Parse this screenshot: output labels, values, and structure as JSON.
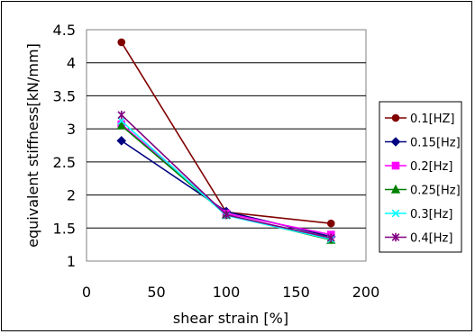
{
  "chart_data": {
    "type": "line",
    "title": "",
    "xlabel": "shear strain [%]",
    "ylabel": "equivalent stiffness[kN/mm]",
    "xlim": [
      0,
      200
    ],
    "ylim": [
      1,
      4.5
    ],
    "x_ticks": [
      "0",
      "50",
      "100",
      "150",
      "200"
    ],
    "y_ticks": [
      "1",
      "1.5",
      "2",
      "2.5",
      "3",
      "3.5",
      "4",
      "4.5"
    ],
    "grid": "horizontal",
    "legend_position": "right",
    "x": [
      25,
      100,
      175
    ],
    "series": [
      {
        "name": "0.1[HZ]",
        "values": [
          4.31,
          1.74,
          1.57
        ],
        "color": "#800000",
        "marker": "circle"
      },
      {
        "name": "0.15[Hz]",
        "values": [
          2.82,
          1.75,
          1.37
        ],
        "color": "#000080",
        "marker": "diamond"
      },
      {
        "name": "0.2[Hz]",
        "values": [
          3.07,
          1.72,
          1.4
        ],
        "color": "#FF00FF",
        "marker": "square"
      },
      {
        "name": "0.25[Hz]",
        "values": [
          3.05,
          1.7,
          1.32
        ],
        "color": "#008000",
        "marker": "triangle"
      },
      {
        "name": "0.3[Hz]",
        "values": [
          3.12,
          1.69,
          1.33
        ],
        "color": "#00FFFF",
        "marker": "x"
      },
      {
        "name": "0.4[Hz]",
        "values": [
          3.21,
          1.7,
          1.35
        ],
        "color": "#800080",
        "marker": "star"
      }
    ]
  }
}
